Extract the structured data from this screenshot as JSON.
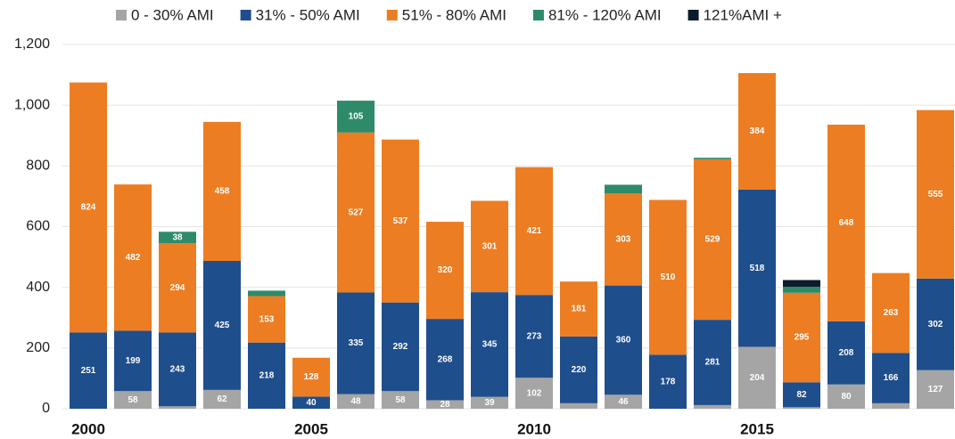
{
  "chart_data": {
    "type": "stacked_bar",
    "categories": [
      "2000",
      null,
      null,
      null,
      null,
      "2005",
      null,
      null,
      null,
      null,
      "2010",
      null,
      null,
      null,
      null,
      "2015",
      null,
      null,
      null,
      null
    ],
    "series": [
      {
        "name": "0 - 30% AMI",
        "color": "#a5a5a5",
        "values": [
          0,
          58,
          8,
          62,
          0,
          0,
          48,
          58,
          28,
          39,
          102,
          18,
          46,
          0,
          12,
          204,
          5,
          80,
          18,
          127
        ],
        "value_labels": [
          null,
          "58",
          null,
          "62",
          null,
          null,
          "48",
          "58",
          "28",
          "39",
          "102",
          null,
          "46",
          null,
          null,
          "204",
          null,
          "80",
          null,
          "127"
        ]
      },
      {
        "name": "31% - 50% AMI",
        "color": "#1f4e8c",
        "values": [
          251,
          199,
          243,
          425,
          218,
          40,
          335,
          292,
          268,
          345,
          273,
          220,
          360,
          178,
          281,
          518,
          82,
          208,
          166,
          302
        ],
        "value_labels": [
          "251",
          "199",
          "243",
          "425",
          "218",
          "40",
          "335",
          "292",
          "268",
          "345",
          "273",
          "220",
          "360",
          "178",
          "281",
          "518",
          "82",
          "208",
          "166",
          "302"
        ]
      },
      {
        "name": "51% - 80% AMI",
        "color": "#ed7d22",
        "values": [
          824,
          482,
          294,
          458,
          153,
          128,
          527,
          537,
          320,
          301,
          421,
          181,
          303,
          510,
          529,
          384,
          295,
          648,
          263,
          555
        ],
        "value_labels": [
          "824",
          "482",
          "294",
          "458",
          "153",
          "128",
          "527",
          "537",
          "320",
          "301",
          "421",
          "181",
          "303",
          "510",
          "529",
          "384",
          "295",
          "648",
          "263",
          "555"
        ]
      },
      {
        "name": "81% - 120% AMI",
        "color": "#2e8b6a",
        "values": [
          0,
          0,
          38,
          0,
          18,
          0,
          105,
          0,
          0,
          0,
          0,
          0,
          29,
          0,
          5,
          0,
          20,
          0,
          0,
          0
        ],
        "value_labels": [
          null,
          null,
          "38",
          null,
          null,
          null,
          "105",
          null,
          null,
          null,
          null,
          null,
          null,
          null,
          null,
          null,
          null,
          null,
          null,
          null
        ]
      },
      {
        "name": "121%AMI +",
        "color": "#0d1b2a",
        "values": [
          0,
          0,
          0,
          0,
          0,
          0,
          0,
          0,
          0,
          0,
          0,
          0,
          0,
          0,
          0,
          0,
          22,
          0,
          0,
          0
        ],
        "value_labels": [
          null,
          null,
          null,
          null,
          null,
          null,
          null,
          null,
          null,
          null,
          null,
          null,
          null,
          null,
          null,
          null,
          null,
          null,
          null,
          null
        ]
      }
    ],
    "ylim": [
      0,
      1200
    ],
    "yticks": [
      0,
      200,
      400,
      600,
      800,
      {
        "value": 1000,
        "label": "1,000"
      },
      {
        "value": 1200,
        "label": "1,200"
      }
    ],
    "grid": true,
    "legend": "top"
  }
}
